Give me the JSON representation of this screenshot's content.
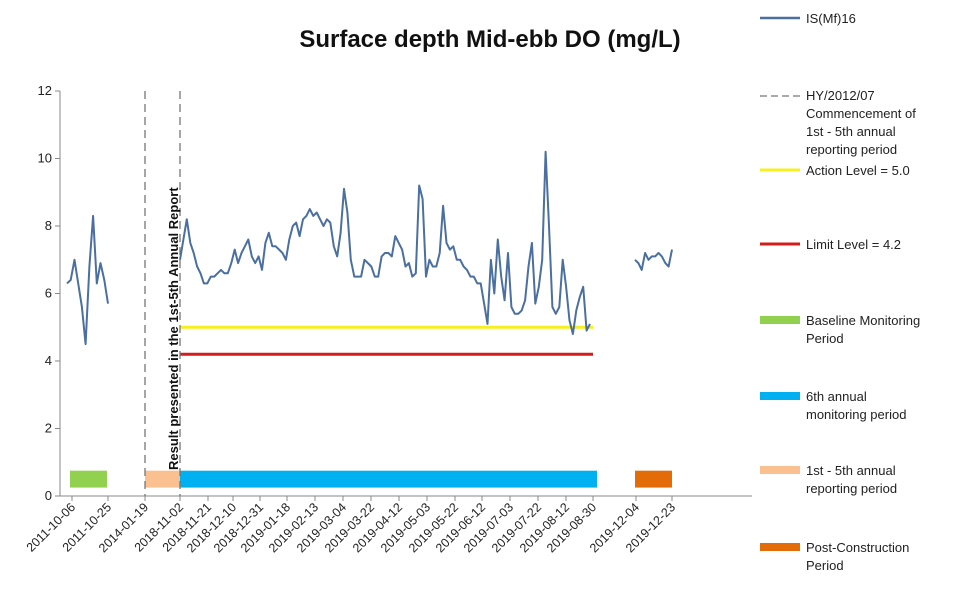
{
  "chart_data": {
    "type": "line",
    "title": "Surface depth Mid-ebb DO (mg/L)",
    "xlabel": "",
    "ylabel": "",
    "ylim": [
      0,
      12
    ],
    "yticks": [
      0,
      2,
      4,
      6,
      8,
      10,
      12
    ],
    "grid": false,
    "legend_position": "right",
    "x_tick_labels": [
      "2011-10-06",
      "2011-10-25",
      "2014-01-19",
      "2018-11-02",
      "2018-11-21",
      "2018-12-10",
      "2018-12-31",
      "2019-01-18",
      "2019-02-13",
      "2019-03-04",
      "2019-03-22",
      "2019-04-12",
      "2019-05-03",
      "2019-05-22",
      "2019-06-12",
      "2019-07-03",
      "2019-07-22",
      "2019-08-12",
      "2019-08-30",
      "2019-12-04",
      "2019-12-23"
    ],
    "annotation": "Result presented in the 1st-5th Annual Report",
    "series": [
      {
        "name": "IS(Mf)16",
        "color": "#4a6fa0",
        "segments": [
          [
            6.3,
            6.4,
            7.0,
            6.3,
            5.6,
            4.5,
            6.8,
            8.3,
            6.3,
            6.9,
            6.4,
            5.7
          ],
          [
            7.0,
            7.6,
            8.2,
            7.5,
            7.2,
            6.8,
            6.6,
            6.3,
            6.3,
            6.5,
            6.5,
            6.6,
            6.7,
            6.6,
            6.6,
            6.9,
            7.3,
            6.9,
            7.2,
            7.4,
            7.6,
            7.1,
            6.9,
            7.1,
            6.7,
            7.5,
            7.8,
            7.4,
            7.4,
            7.3,
            7.2,
            7.0,
            7.6,
            8.0,
            8.1,
            7.7,
            8.2,
            8.3,
            8.5,
            8.3,
            8.4,
            8.2,
            8.0,
            8.2,
            8.1,
            7.4,
            7.1,
            7.8,
            9.1,
            8.4,
            7.0,
            6.5,
            6.5,
            6.5,
            7.0,
            6.9,
            6.8,
            6.5,
            6.5,
            7.1,
            7.2,
            7.2,
            7.1,
            7.7,
            7.5,
            7.3,
            6.8,
            6.9,
            6.5,
            6.6,
            9.2,
            8.8,
            6.5,
            7.0,
            6.8,
            6.8,
            7.2,
            8.6,
            7.5,
            7.3,
            7.4,
            7.0,
            7.0,
            6.8,
            6.7,
            6.5,
            6.5,
            6.3,
            6.3,
            5.7,
            5.1,
            7.0,
            6.0,
            7.6,
            6.5,
            5.8,
            7.2,
            5.6,
            5.4,
            5.4,
            5.5,
            5.8,
            6.8,
            7.5,
            5.7,
            6.2,
            7.0,
            10.2,
            8.0,
            5.6,
            5.4,
            5.6,
            7.0,
            6.2,
            5.2,
            4.8,
            5.5,
            5.9,
            6.2,
            4.9,
            5.1
          ],
          [
            7.0,
            6.9,
            6.7,
            7.2,
            7.0,
            7.1,
            7.1,
            7.2,
            7.1,
            6.9,
            6.8,
            7.3
          ]
        ]
      },
      {
        "name": "HY/2012/07 Commencement of 1st - 5th annual reporting period",
        "color": "#777777",
        "style": "dashed"
      },
      {
        "name": "Action Level = 5.0",
        "color": "#f5f01e",
        "values": [
          5.0
        ]
      },
      {
        "name": "Limit Level = 4.2",
        "color": "#d41c1c",
        "values": [
          4.2
        ]
      },
      {
        "name": "Baseline Monitoring Period",
        "color": "#92d050"
      },
      {
        "name": "6th annual monitoring period",
        "color": "#00b0f0"
      },
      {
        "name": "1st - 5th annual reporting period",
        "color": "#fac090"
      },
      {
        "name": "Post-Construction Period",
        "color": "#e36c09"
      }
    ]
  }
}
